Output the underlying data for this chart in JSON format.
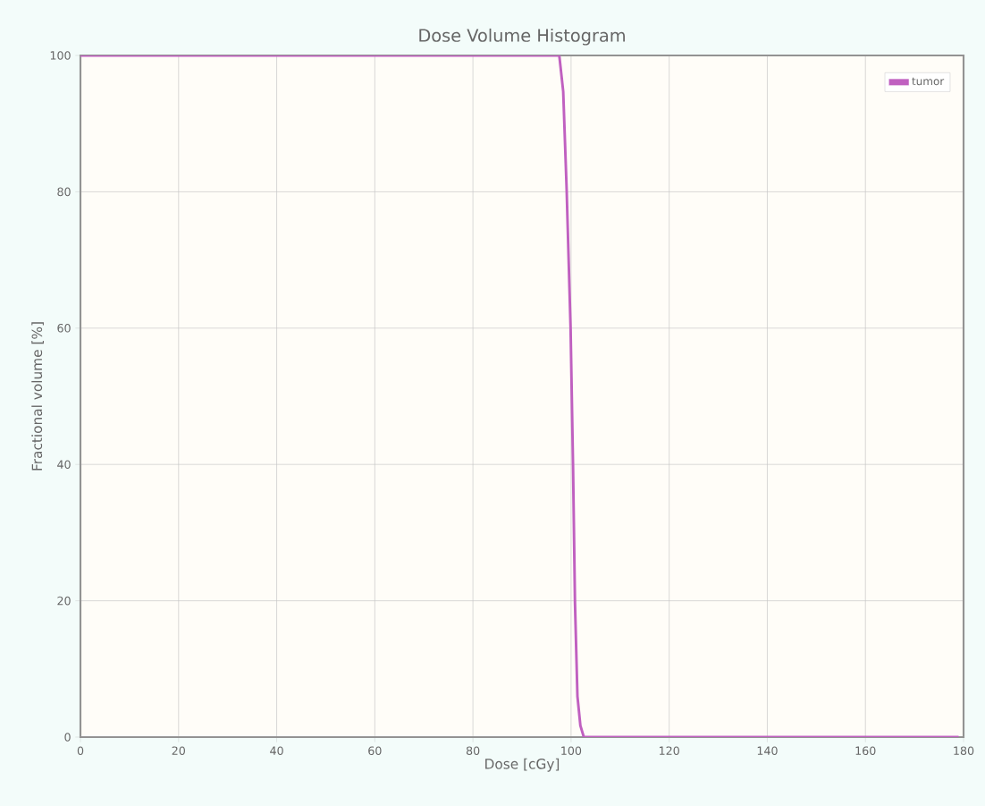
{
  "chart_data": {
    "type": "line",
    "title": "Dose Volume Histogram",
    "xlabel": "Dose [cGy]",
    "ylabel": "Fractional volume [%]",
    "series": [
      {
        "name": "tumor",
        "color": "#c060c0",
        "x": [
          0,
          97.6,
          98.4,
          99.1,
          99.9,
          100.4,
          100.8,
          101.3,
          101.9,
          102.6,
          179
        ],
        "values": [
          100,
          100,
          94.7,
          80.3,
          60.1,
          39.9,
          19.7,
          6.0,
          1.7,
          0,
          0
        ]
      }
    ],
    "xlim": [
      0,
      180
    ],
    "ylim": [
      0,
      100
    ],
    "xticks": [
      0,
      20,
      40,
      60,
      80,
      100,
      120,
      140,
      160,
      180
    ],
    "yticks": [
      0,
      20,
      40,
      60,
      80,
      100
    ],
    "grid": true,
    "legend": "top right",
    "marker": "none",
    "line_style": "solid"
  }
}
